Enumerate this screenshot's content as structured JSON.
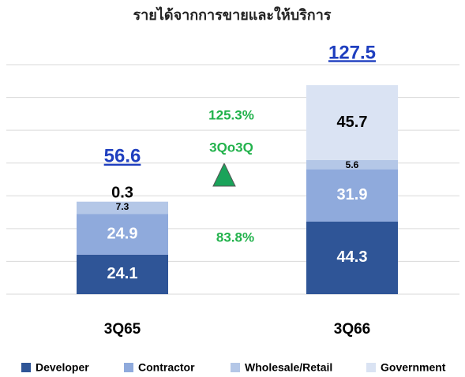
{
  "chart_data": {
    "type": "stacked_bar",
    "title": "รายได้จากการขายและให้บริการ",
    "categories": [
      "3Q65",
      "3Q66"
    ],
    "series": [
      {
        "name": "Developer",
        "color": "#2f5597",
        "values": [
          24.1,
          44.3
        ]
      },
      {
        "name": "Contractor",
        "color": "#8faadc",
        "values": [
          24.9,
          31.9
        ]
      },
      {
        "name": "Wholesale/Retail",
        "color": "#b4c7e7",
        "values": [
          7.3,
          5.6
        ]
      },
      {
        "name": "Government",
        "color": "#dae3f3",
        "values": [
          0.3,
          45.7
        ]
      }
    ],
    "totals": [
      56.6,
      127.5
    ],
    "annotations": [
      "125.3%",
      "3Qo3Q",
      "83.8%"
    ],
    "ylim": [
      0,
      140
    ],
    "yticks": [
      0,
      20,
      40,
      60,
      80,
      100,
      120,
      140
    ],
    "grid": true,
    "legend": "bottom"
  }
}
